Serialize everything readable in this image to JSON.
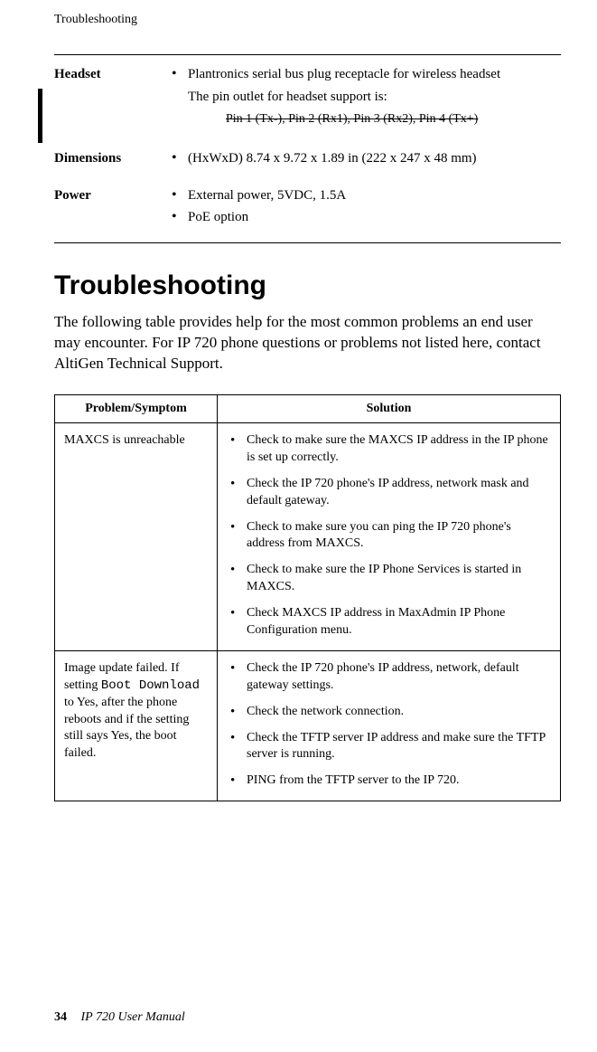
{
  "header": {
    "running_head": "Troubleshooting"
  },
  "specs": {
    "headset": {
      "label": "Headset",
      "bullet": "Plantronics serial bus plug receptacle for wireless headset",
      "note": "The pin outlet for headset support is:",
      "strike": "Pin 1 (Tx-), Pin 2 (Rx1), Pin 3 (Rx2), Pin 4 (Tx+)"
    },
    "dimensions": {
      "label": "Dimensions",
      "bullet": "(HxWxD) 8.74 x 9.72 x 1.89 in (222 x 247 x 48 mm)"
    },
    "power": {
      "label": "Power",
      "bullets": [
        "External power, 5VDC, 1.5A",
        "PoE option"
      ]
    }
  },
  "section": {
    "title": "Troubleshooting",
    "intro": "The following table provides help for the most common problems an end user may encounter. For IP 720 phone questions or problems not listed here, contact AltiGen Technical Support."
  },
  "table": {
    "head_problem": "Problem/Symptom",
    "head_solution": "Solution",
    "rows": [
      {
        "problem": "MAXCS is unreachable",
        "solutions": [
          "Check to make sure the MAXCS IP address in the IP phone is set up correctly.",
          "Check the IP 720 phone's IP address, network mask and default gateway.",
          "Check to make sure you can ping the IP 720 phone's address from MAXCS.",
          "Check to make sure the IP Phone Services is started in MAXCS.",
          "Check MAXCS IP address in MaxAdmin IP Phone Configuration menu."
        ]
      },
      {
        "problem_pre": "Image update failed. If setting ",
        "problem_code": "Boot Download",
        "problem_post": " to Yes, after the phone reboots and if the setting still says Yes, the boot failed.",
        "solutions": [
          "Check the IP 720 phone's IP address, network, default gateway settings.",
          "Check the network connection.",
          "Check the TFTP server IP address and make sure the TFTP server is running.",
          "PING from the TFTP server to the IP 720."
        ]
      }
    ]
  },
  "footer": {
    "page_number": "34",
    "doc_title": "IP 720 User Manual"
  }
}
